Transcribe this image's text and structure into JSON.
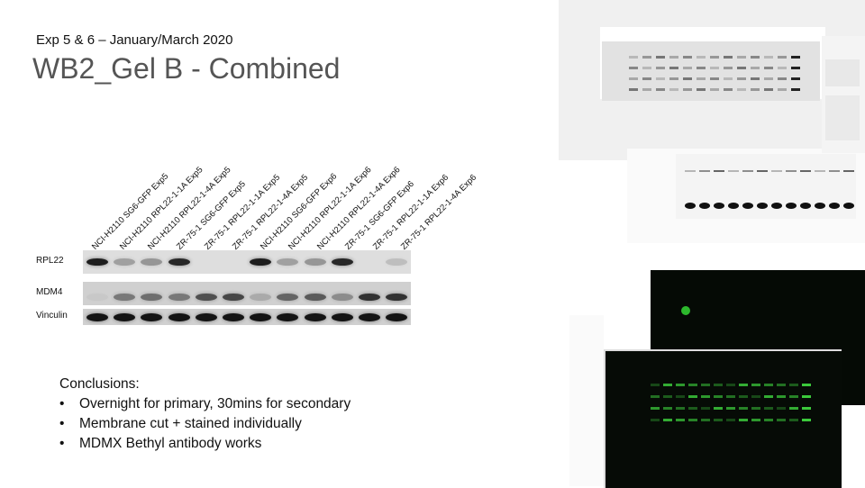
{
  "header": {
    "subtitle": "Exp 5 & 6 – January/March 2020",
    "title": "WB2_Gel B - Combined"
  },
  "lanes": [
    "NCI-H2110 SG6-GFP Exp5",
    "NCI-H2110 RPL22-1-1A Exp5",
    "NCI-H2110 RPL22-1-4A Exp5",
    "ZR-75-1 SG6-GFP Exp5",
    "ZR-75-1 RPL22-1-1A Exp5",
    "ZR-75-1 RPL22-1-4A Exp5",
    "NCI-H2110 SG6-GFP Exp6",
    "NCI-H2110 RPL22-1-1A Exp6",
    "NCI-H2110 RPL22-1-4A Exp6",
    "ZR-75-1 SG6-GFP Exp6",
    "ZR-75-1 RPL22-1-1A Exp6",
    "ZR-75-1 RPL22-1-4A Exp6"
  ],
  "blots": [
    {
      "label": "RPL22",
      "intensities": [
        0.9,
        0.25,
        0.3,
        0.85,
        0.0,
        0.0,
        0.9,
        0.25,
        0.3,
        0.85,
        0.0,
        0.1
      ]
    },
    {
      "label": "MDM4",
      "intensities": [
        0.05,
        0.45,
        0.5,
        0.45,
        0.65,
        0.7,
        0.2,
        0.55,
        0.6,
        0.35,
        0.8,
        0.8
      ]
    },
    {
      "label": "Vinculin",
      "intensities": [
        0.95,
        0.95,
        0.95,
        0.95,
        0.95,
        0.95,
        0.95,
        0.95,
        0.95,
        0.95,
        0.95,
        0.95
      ]
    }
  ],
  "conclusions": {
    "heading": "Conclusions:",
    "items": [
      "Overnight for primary, 30mins for secondary",
      "Membrane cut + stained individually",
      "MDMX Bethyl antibody works"
    ]
  },
  "colors": {
    "title": "#555555",
    "fluorescent_band": "#3ed43e",
    "gel_background_dark": "#050a05"
  }
}
